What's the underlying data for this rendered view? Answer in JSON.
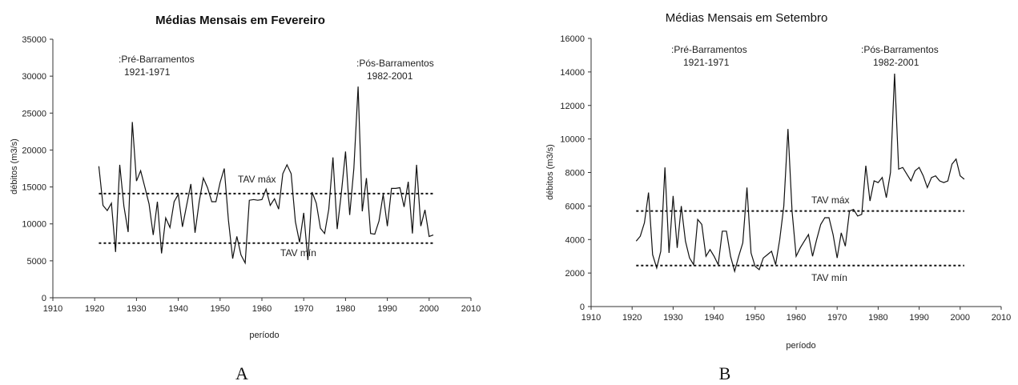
{
  "chart_data": [
    {
      "type": "line",
      "title": "Médias Mensais em Fevereiro",
      "panel_label": "A",
      "xlabel": "período",
      "ylabel": "débitos (m3/s)",
      "xlim": [
        1910,
        2010
      ],
      "ylim": [
        0,
        35000
      ],
      "xticks": [
        1910,
        1920,
        1930,
        1940,
        1950,
        1960,
        1970,
        1980,
        1990,
        2000,
        2010
      ],
      "yticks": [
        0,
        5000,
        10000,
        15000,
        20000,
        25000,
        30000,
        35000
      ],
      "grid": false,
      "series": [
        {
          "x": [
            1921,
            1922,
            1923,
            1924,
            1925,
            1926,
            1927,
            1928,
            1929,
            1930,
            1931,
            1932,
            1933,
            1934,
            1935,
            1936,
            1937,
            1938,
            1939,
            1940,
            1941,
            1942,
            1943,
            1944,
            1945,
            1946,
            1947,
            1948,
            1949,
            1950,
            1951,
            1952,
            1953,
            1954,
            1955,
            1956,
            1957,
            1958,
            1959,
            1960,
            1961,
            1962,
            1963,
            1964,
            1965,
            1966,
            1967,
            1968,
            1969,
            1970,
            1971,
            1972,
            1973,
            1974,
            1975,
            1976,
            1977,
            1978,
            1979,
            1980,
            1981,
            1982,
            1983,
            1984,
            1985,
            1986,
            1987,
            1988,
            1989,
            1990,
            1991,
            1992,
            1993,
            1994,
            1995,
            1996,
            1997,
            1998,
            1999,
            2000,
            2001
          ],
          "y": [
            17800,
            12500,
            11800,
            12800,
            6200,
            18000,
            12400,
            8900,
            23800,
            15800,
            17200,
            15000,
            12700,
            8500,
            13000,
            6000,
            10800,
            9500,
            13000,
            14000,
            9600,
            12500,
            15400,
            8800,
            13000,
            16200,
            14900,
            13000,
            13000,
            15600,
            17500,
            10500,
            5300,
            8300,
            5800,
            4700,
            13200,
            13300,
            13200,
            13300,
            14700,
            12500,
            13400,
            12000,
            16800,
            18000,
            16800,
            10300,
            7500,
            11500,
            5100,
            14300,
            12800,
            9400,
            8700,
            12000,
            19000,
            9300,
            14200,
            19800,
            11200,
            17500,
            28600,
            11700,
            16200,
            8700,
            8600,
            10400,
            14000,
            9700,
            14800,
            14800,
            14900,
            12300,
            15700,
            8700,
            18000,
            9700,
            11900,
            8300,
            8500
          ]
        }
      ],
      "reference_lines": [
        {
          "label": "TAV máx",
          "y": 14100
        },
        {
          "label": "TAV mín",
          "y": 7400
        }
      ],
      "annotations": [
        {
          "lines": [
            ":Pré-Barramentos",
            "1921-1971"
          ]
        },
        {
          "lines": [
            ":Pós-Barramentos",
            "1982-2001"
          ]
        }
      ]
    },
    {
      "type": "line",
      "title": "Médias Mensais em Setembro",
      "panel_label": "B",
      "xlabel": "período",
      "ylabel": "débitos (m3/s)",
      "xlim": [
        1910,
        2010
      ],
      "ylim": [
        0,
        16000
      ],
      "xticks": [
        1910,
        1920,
        1930,
        1940,
        1950,
        1960,
        1970,
        1980,
        1990,
        2000,
        2010
      ],
      "yticks": [
        0,
        2000,
        4000,
        6000,
        8000,
        10000,
        12000,
        14000,
        16000
      ],
      "grid": false,
      "series": [
        {
          "x": [
            1921,
            1922,
            1923,
            1924,
            1925,
            1926,
            1927,
            1928,
            1929,
            1930,
            1931,
            1932,
            1933,
            1934,
            1935,
            1936,
            1937,
            1938,
            1939,
            1940,
            1941,
            1942,
            1943,
            1944,
            1945,
            1946,
            1947,
            1948,
            1949,
            1950,
            1951,
            1952,
            1953,
            1954,
            1955,
            1956,
            1957,
            1958,
            1959,
            1960,
            1961,
            1962,
            1963,
            1964,
            1965,
            1966,
            1967,
            1968,
            1969,
            1970,
            1971,
            1972,
            1973,
            1974,
            1975,
            1976,
            1977,
            1978,
            1979,
            1980,
            1981,
            1982,
            1983,
            1984,
            1985,
            1986,
            1987,
            1988,
            1989,
            1990,
            1991,
            1992,
            1993,
            1994,
            1995,
            1996,
            1997,
            1998,
            1999,
            2000,
            2001
          ],
          "y": [
            3900,
            4200,
            5000,
            6800,
            3100,
            2300,
            3300,
            8300,
            3200,
            6600,
            3500,
            6000,
            3900,
            2900,
            2500,
            5200,
            4900,
            3000,
            3400,
            3000,
            2500,
            4500,
            4500,
            3000,
            2100,
            3000,
            3800,
            7100,
            3200,
            2400,
            2200,
            2900,
            3100,
            3300,
            2500,
            4000,
            6000,
            10600,
            5700,
            3000,
            3500,
            3900,
            4300,
            3000,
            4000,
            4900,
            5300,
            5300,
            4300,
            2900,
            4400,
            3600,
            5700,
            5800,
            5400,
            5500,
            8400,
            6300,
            7500,
            7400,
            7700,
            6500,
            8000,
            13900,
            8200,
            8300,
            7900,
            7500,
            8100,
            8300,
            7800,
            7100,
            7700,
            7800,
            7500,
            7400,
            7500,
            8500,
            8800,
            7800,
            7600
          ]
        }
      ],
      "reference_lines": [
        {
          "label": "TAV máx",
          "y": 5700
        },
        {
          "label": "TAV mín",
          "y": 2450
        }
      ],
      "annotations": [
        {
          "lines": [
            ":Pré-Barramentos",
            "1921-1971"
          ]
        },
        {
          "lines": [
            ":Pós-Barramentos",
            "1982-2001"
          ]
        }
      ]
    }
  ]
}
